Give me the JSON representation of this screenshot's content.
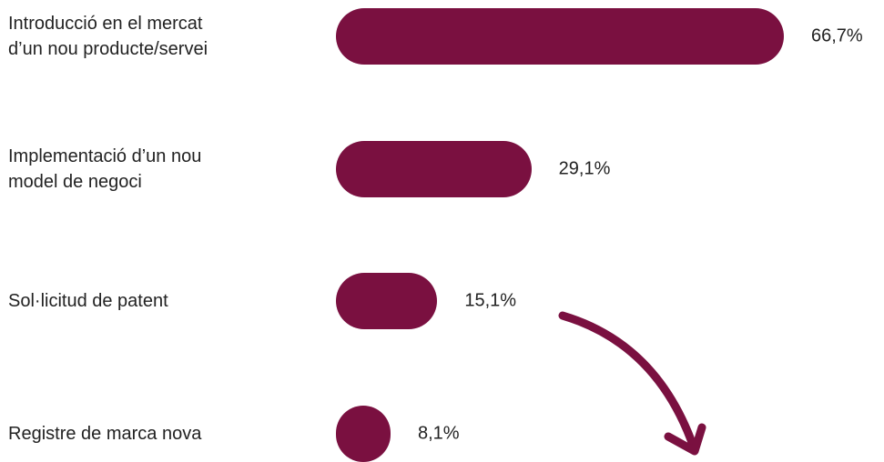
{
  "chart_data": {
    "type": "bar",
    "orientation": "horizontal",
    "categories": [
      "Introducció en el mercat\nd’un nou producte/servei",
      "Implementació d’un nou\nmodel de negoci",
      "Sol·licitud de patent",
      "Registre de marca nova"
    ],
    "values": [
      66.7,
      29.1,
      15.1,
      8.1
    ],
    "value_labels": [
      "66,7%",
      "29,1%",
      "15,1%",
      "8,1%"
    ],
    "color": "#7a1040"
  }
}
